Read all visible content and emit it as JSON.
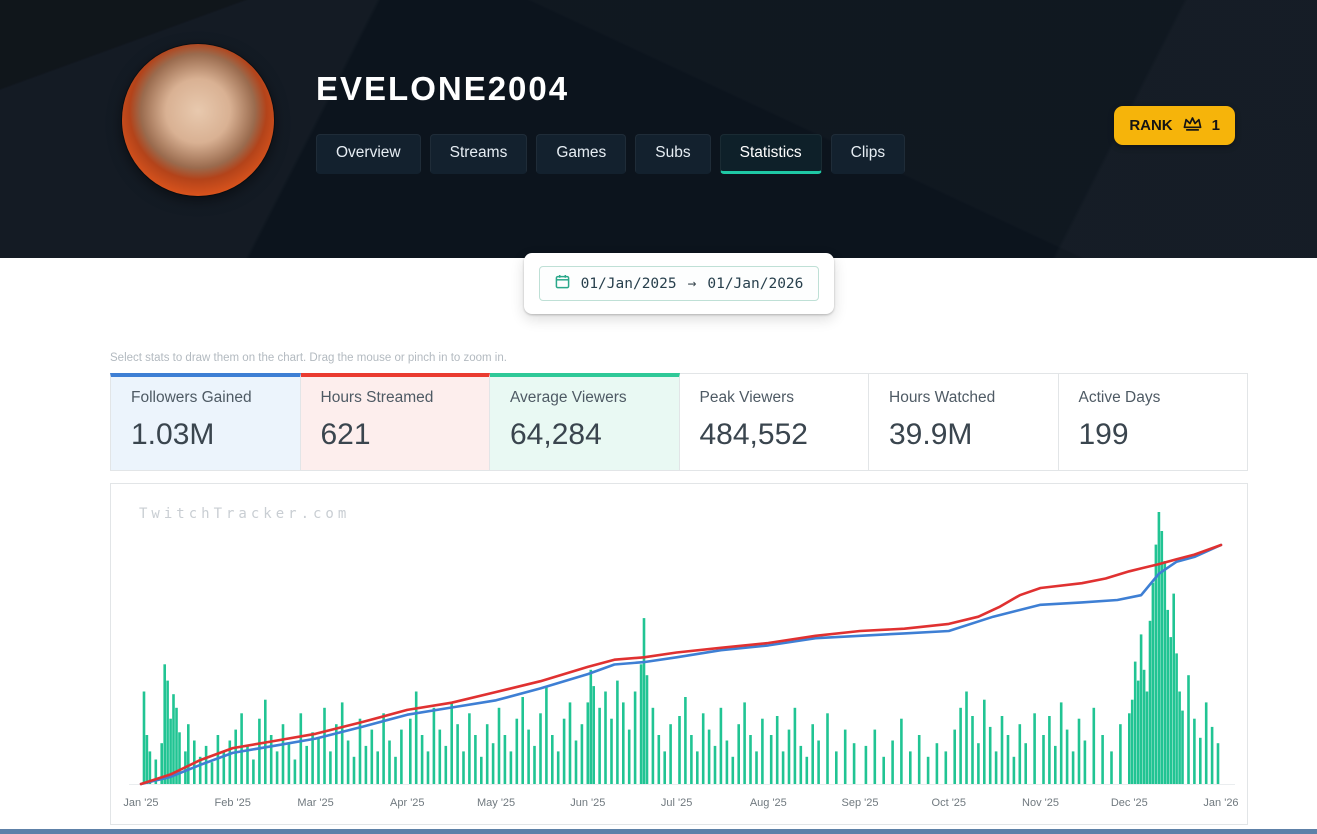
{
  "header": {
    "title": "EVELONE2004",
    "tabs": [
      {
        "label": "Overview",
        "active": false
      },
      {
        "label": "Streams",
        "active": false
      },
      {
        "label": "Games",
        "active": false
      },
      {
        "label": "Subs",
        "active": false
      },
      {
        "label": "Statistics",
        "active": true
      },
      {
        "label": "Clips",
        "active": false
      }
    ],
    "rank": {
      "label": "RANK",
      "value": "1",
      "badge_color": "#f6b40a",
      "active_tab_underline": "#1fc8a5"
    }
  },
  "date_range": {
    "start": "01/Jan/2025",
    "arrow": "→",
    "end": "01/Jan/2026"
  },
  "hint": "Select stats to draw them on the chart. Drag the mouse or pinch in to zoom in.",
  "stat_cards": [
    {
      "label": "Followers Gained",
      "value": "1.03M",
      "selected": true,
      "color": "#3e7fd4"
    },
    {
      "label": "Hours Streamed",
      "value": "621",
      "selected": true,
      "color": "#ea3b30"
    },
    {
      "label": "Average Viewers",
      "value": "64,284",
      "selected": true,
      "color": "#2fc998"
    },
    {
      "label": "Peak Viewers",
      "value": "484,552",
      "selected": false,
      "color": ""
    },
    {
      "label": "Hours Watched",
      "value": "39.9M",
      "selected": false,
      "color": ""
    },
    {
      "label": "Active Days",
      "value": "199",
      "selected": false,
      "color": ""
    }
  ],
  "watermark": "TwitchTracker.com",
  "chart_data": {
    "type": "mixed",
    "title": "",
    "grid": false,
    "legend_position": "none",
    "x_axis": {
      "unit": "day_of_year_2025",
      "range": [
        0,
        365
      ],
      "tick_labels": [
        "Jan '25",
        "Feb '25",
        "Mar '25",
        "Apr '25",
        "May '25",
        "Jun '25",
        "Jul '25",
        "Aug '25",
        "Sep '25",
        "Oct '25",
        "Nov '25",
        "Dec '25",
        "Jan '26"
      ],
      "tick_days": [
        0,
        31,
        59,
        90,
        120,
        151,
        181,
        212,
        243,
        273,
        304,
        334,
        365
      ]
    },
    "bars": {
      "name": "Average Viewers (per stream, % of max)",
      "type": "bar",
      "color": "#21c493",
      "scale": "percent_of_max_day",
      "points": [
        [
          1,
          34
        ],
        [
          2,
          18
        ],
        [
          3,
          12
        ],
        [
          5,
          9
        ],
        [
          7,
          15
        ],
        [
          8,
          44
        ],
        [
          9,
          38
        ],
        [
          10,
          24
        ],
        [
          11,
          33
        ],
        [
          12,
          28
        ],
        [
          13,
          19
        ],
        [
          15,
          12
        ],
        [
          16,
          22
        ],
        [
          18,
          16
        ],
        [
          20,
          10
        ],
        [
          22,
          14
        ],
        [
          24,
          8
        ],
        [
          26,
          18
        ],
        [
          28,
          12
        ],
        [
          30,
          16
        ],
        [
          32,
          20
        ],
        [
          34,
          26
        ],
        [
          36,
          14
        ],
        [
          38,
          9
        ],
        [
          40,
          24
        ],
        [
          42,
          31
        ],
        [
          44,
          18
        ],
        [
          46,
          12
        ],
        [
          48,
          22
        ],
        [
          50,
          15
        ],
        [
          52,
          9
        ],
        [
          54,
          26
        ],
        [
          56,
          14
        ],
        [
          58,
          19
        ],
        [
          60,
          17
        ],
        [
          62,
          28
        ],
        [
          64,
          12
        ],
        [
          66,
          22
        ],
        [
          68,
          30
        ],
        [
          70,
          16
        ],
        [
          72,
          10
        ],
        [
          74,
          24
        ],
        [
          76,
          14
        ],
        [
          78,
          20
        ],
        [
          80,
          12
        ],
        [
          82,
          26
        ],
        [
          84,
          16
        ],
        [
          86,
          10
        ],
        [
          88,
          20
        ],
        [
          91,
          24
        ],
        [
          93,
          34
        ],
        [
          95,
          18
        ],
        [
          97,
          12
        ],
        [
          99,
          28
        ],
        [
          101,
          20
        ],
        [
          103,
          14
        ],
        [
          105,
          30
        ],
        [
          107,
          22
        ],
        [
          109,
          12
        ],
        [
          111,
          26
        ],
        [
          113,
          18
        ],
        [
          115,
          10
        ],
        [
          117,
          22
        ],
        [
          119,
          15
        ],
        [
          121,
          28
        ],
        [
          123,
          18
        ],
        [
          125,
          12
        ],
        [
          127,
          24
        ],
        [
          129,
          32
        ],
        [
          131,
          20
        ],
        [
          133,
          14
        ],
        [
          135,
          26
        ],
        [
          137,
          36
        ],
        [
          139,
          18
        ],
        [
          141,
          12
        ],
        [
          143,
          24
        ],
        [
          145,
          30
        ],
        [
          147,
          16
        ],
        [
          149,
          22
        ],
        [
          151,
          30
        ],
        [
          152,
          42
        ],
        [
          153,
          36
        ],
        [
          155,
          28
        ],
        [
          157,
          34
        ],
        [
          159,
          24
        ],
        [
          161,
          38
        ],
        [
          163,
          30
        ],
        [
          165,
          20
        ],
        [
          167,
          34
        ],
        [
          169,
          44
        ],
        [
          170,
          61
        ],
        [
          171,
          40
        ],
        [
          173,
          28
        ],
        [
          175,
          18
        ],
        [
          177,
          12
        ],
        [
          179,
          22
        ],
        [
          182,
          25
        ],
        [
          184,
          32
        ],
        [
          186,
          18
        ],
        [
          188,
          12
        ],
        [
          190,
          26
        ],
        [
          192,
          20
        ],
        [
          194,
          14
        ],
        [
          196,
          28
        ],
        [
          198,
          16
        ],
        [
          200,
          10
        ],
        [
          202,
          22
        ],
        [
          204,
          30
        ],
        [
          206,
          18
        ],
        [
          208,
          12
        ],
        [
          210,
          24
        ],
        [
          213,
          18
        ],
        [
          215,
          25
        ],
        [
          217,
          12
        ],
        [
          219,
          20
        ],
        [
          221,
          28
        ],
        [
          223,
          14
        ],
        [
          225,
          10
        ],
        [
          227,
          22
        ],
        [
          229,
          16
        ],
        [
          232,
          26
        ],
        [
          235,
          12
        ],
        [
          238,
          20
        ],
        [
          241,
          15
        ],
        [
          245,
          14
        ],
        [
          248,
          20
        ],
        [
          251,
          10
        ],
        [
          254,
          16
        ],
        [
          257,
          24
        ],
        [
          260,
          12
        ],
        [
          263,
          18
        ],
        [
          266,
          10
        ],
        [
          269,
          15
        ],
        [
          272,
          12
        ],
        [
          275,
          20
        ],
        [
          277,
          28
        ],
        [
          279,
          34
        ],
        [
          281,
          25
        ],
        [
          283,
          15
        ],
        [
          285,
          31
        ],
        [
          287,
          21
        ],
        [
          289,
          12
        ],
        [
          291,
          25
        ],
        [
          293,
          18
        ],
        [
          295,
          10
        ],
        [
          297,
          22
        ],
        [
          299,
          15
        ],
        [
          302,
          26
        ],
        [
          305,
          18
        ],
        [
          307,
          25
        ],
        [
          309,
          14
        ],
        [
          311,
          30
        ],
        [
          313,
          20
        ],
        [
          315,
          12
        ],
        [
          317,
          24
        ],
        [
          319,
          16
        ],
        [
          322,
          28
        ],
        [
          325,
          18
        ],
        [
          328,
          12
        ],
        [
          331,
          22
        ],
        [
          334,
          26
        ],
        [
          335,
          31
        ],
        [
          336,
          45
        ],
        [
          337,
          38
        ],
        [
          338,
          55
        ],
        [
          339,
          42
        ],
        [
          340,
          34
        ],
        [
          341,
          60
        ],
        [
          342,
          74
        ],
        [
          343,
          88
        ],
        [
          344,
          100
        ],
        [
          345,
          93
        ],
        [
          346,
          82
        ],
        [
          347,
          64
        ],
        [
          348,
          54
        ],
        [
          349,
          70
        ],
        [
          350,
          48
        ],
        [
          351,
          34
        ],
        [
          352,
          27
        ],
        [
          354,
          40
        ],
        [
          356,
          24
        ],
        [
          358,
          17
        ],
        [
          360,
          30
        ],
        [
          362,
          21
        ],
        [
          364,
          15
        ]
      ]
    },
    "lines": [
      {
        "name": "Followers Gained (cumulative, % of 1.03M total)",
        "type": "line",
        "color": "#3e7fd4",
        "total": "1.03M",
        "points": [
          [
            0,
            0
          ],
          [
            10,
            3
          ],
          [
            20,
            8
          ],
          [
            31,
            13
          ],
          [
            45,
            16
          ],
          [
            59,
            19
          ],
          [
            75,
            24
          ],
          [
            90,
            29
          ],
          [
            105,
            32
          ],
          [
            120,
            35
          ],
          [
            135,
            40
          ],
          [
            151,
            46
          ],
          [
            160,
            50
          ],
          [
            170,
            51
          ],
          [
            181,
            53
          ],
          [
            196,
            56
          ],
          [
            212,
            58
          ],
          [
            228,
            61
          ],
          [
            243,
            62
          ],
          [
            258,
            63
          ],
          [
            273,
            64
          ],
          [
            288,
            70
          ],
          [
            304,
            75
          ],
          [
            318,
            76
          ],
          [
            330,
            77
          ],
          [
            338,
            79
          ],
          [
            344,
            88
          ],
          [
            350,
            93
          ],
          [
            356,
            95
          ],
          [
            365,
            100
          ]
        ]
      },
      {
        "name": "Hours Streamed (cumulative, % of 621 total)",
        "type": "line",
        "color": "#e03131",
        "total": "621",
        "points": [
          [
            0,
            0
          ],
          [
            10,
            4
          ],
          [
            20,
            10
          ],
          [
            31,
            15
          ],
          [
            45,
            18
          ],
          [
            59,
            21
          ],
          [
            75,
            26
          ],
          [
            90,
            31
          ],
          [
            105,
            34
          ],
          [
            120,
            38.5
          ],
          [
            135,
            43
          ],
          [
            151,
            49
          ],
          [
            160,
            52
          ],
          [
            170,
            53
          ],
          [
            181,
            55
          ],
          [
            196,
            57
          ],
          [
            212,
            59
          ],
          [
            228,
            62
          ],
          [
            243,
            64
          ],
          [
            258,
            65
          ],
          [
            273,
            67
          ],
          [
            283,
            70
          ],
          [
            290,
            74
          ],
          [
            297,
            79
          ],
          [
            304,
            82
          ],
          [
            318,
            84
          ],
          [
            326,
            86
          ],
          [
            334,
            89
          ],
          [
            344,
            92
          ],
          [
            350,
            94
          ],
          [
            356,
            96
          ],
          [
            365,
            100
          ]
        ]
      }
    ]
  }
}
